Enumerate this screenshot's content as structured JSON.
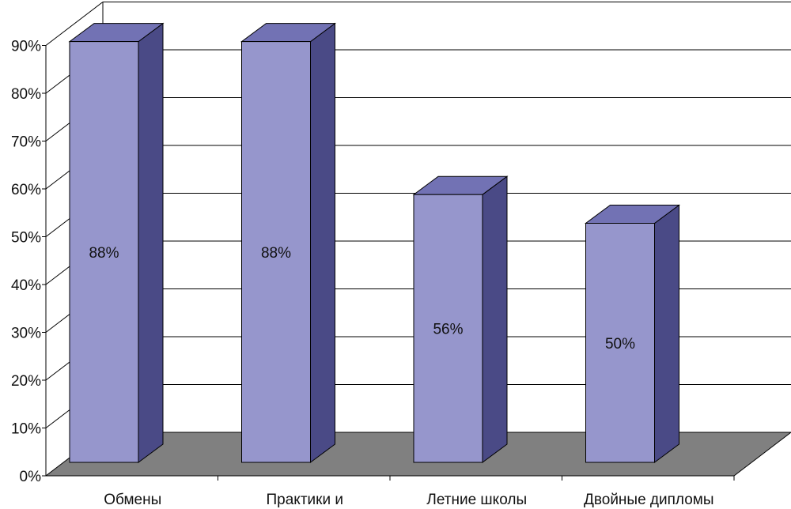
{
  "chart_data": {
    "type": "bar",
    "categories": [
      "Обмены",
      "Практики и",
      "Летние школы",
      "Двойные дипломы"
    ],
    "values": [
      88,
      88,
      56,
      50
    ],
    "data_labels": [
      "88%",
      "88%",
      "56%",
      "50%"
    ],
    "yticks": [
      "0%",
      "10%",
      "20%",
      "30%",
      "40%",
      "50%",
      "60%",
      "70%",
      "80%",
      "90%"
    ],
    "ylim": [
      0,
      90
    ],
    "grid": true,
    "three_d": true,
    "legend": "none",
    "colors": {
      "bar_front": "#9696cc",
      "bar_side": "#4a4a86",
      "bar_top": "#7272b4",
      "floor": "#808080",
      "gridline": "#000000"
    }
  }
}
